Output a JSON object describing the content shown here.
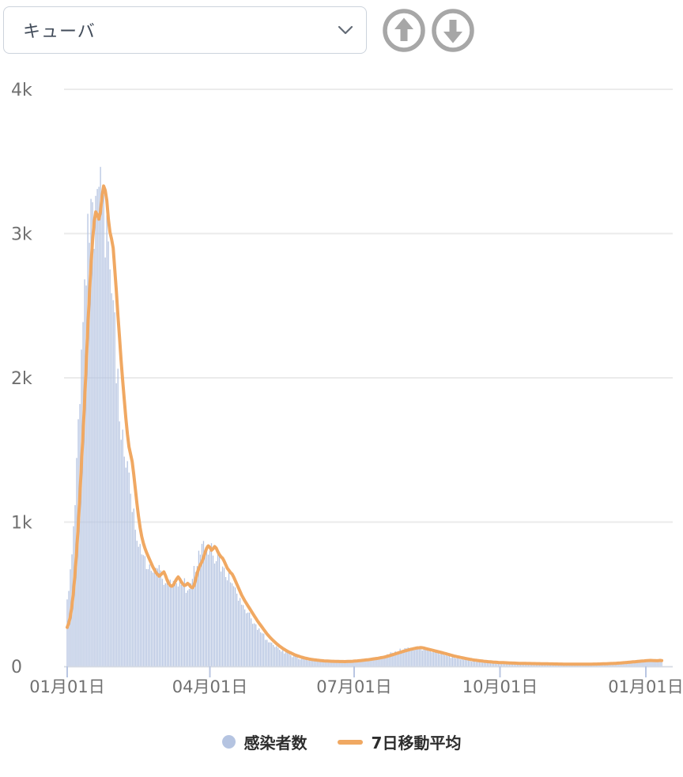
{
  "toolbar": {
    "country_select": {
      "value": "キューバ",
      "chevron_icon": "chevron-down"
    },
    "up_button_icon": "arrow-up-circle",
    "down_button_icon": "arrow-down-circle",
    "button_color": "#a7a7a7"
  },
  "chart_data": {
    "type": "bar+line",
    "title": "",
    "series": [
      {
        "name": "感染者数",
        "type": "bar",
        "color": "#b5c4e1"
      },
      {
        "name": "7日移動平均",
        "type": "line",
        "color": "#f0a862",
        "stroke_width": 4
      }
    ],
    "x_axis": {
      "tick_labels": [
        "01月01日",
        "04月01日",
        "07月01日",
        "10月01日",
        "01月01日"
      ],
      "tick_days": [
        0,
        90,
        181,
        273,
        365
      ],
      "days_total": 375,
      "axis_color": "#d5dae3",
      "tick_color": "#b9c6e2",
      "label_color": "#707070"
    },
    "y_axis": {
      "tick_labels": [
        "0",
        "1k",
        "2k",
        "3k",
        "4k"
      ],
      "tick_values": [
        0,
        1000,
        2000,
        3000,
        4000
      ],
      "max": 4000,
      "grid_color": "#ebebeb",
      "label_color": "#707070"
    },
    "ma7_keypoints": [
      [
        0,
        270
      ],
      [
        1,
        300
      ],
      [
        2,
        345
      ],
      [
        3,
        420
      ],
      [
        4,
        520
      ],
      [
        5,
        650
      ],
      [
        6,
        800
      ],
      [
        7,
        980
      ],
      [
        8,
        1180
      ],
      [
        9,
        1400
      ],
      [
        10,
        1620
      ],
      [
        11,
        1850
      ],
      [
        12,
        2100
      ],
      [
        13,
        2350
      ],
      [
        14,
        2580
      ],
      [
        15,
        2780
      ],
      [
        16,
        2950
      ],
      [
        17,
        3080
      ],
      [
        18,
        3150
      ],
      [
        19,
        3130
      ],
      [
        20,
        3100
      ],
      [
        21,
        3150
      ],
      [
        22,
        3260
      ],
      [
        23,
        3330
      ],
      [
        24,
        3300
      ],
      [
        25,
        3230
      ],
      [
        26,
        3100
      ],
      [
        27,
        3010
      ],
      [
        28,
        2960
      ],
      [
        29,
        2900
      ],
      [
        30,
        2750
      ],
      [
        31,
        2600
      ],
      [
        32,
        2430
      ],
      [
        33,
        2280
      ],
      [
        34,
        2120
      ],
      [
        35,
        1980
      ],
      [
        36,
        1850
      ],
      [
        37,
        1720
      ],
      [
        38,
        1610
      ],
      [
        39,
        1520
      ],
      [
        40,
        1470
      ],
      [
        41,
        1420
      ],
      [
        42,
        1330
      ],
      [
        43,
        1230
      ],
      [
        44,
        1130
      ],
      [
        45,
        1040
      ],
      [
        46,
        960
      ],
      [
        47,
        900
      ],
      [
        48,
        855
      ],
      [
        49,
        820
      ],
      [
        50,
        790
      ],
      [
        52,
        740
      ],
      [
        54,
        690
      ],
      [
        56,
        650
      ],
      [
        58,
        625
      ],
      [
        60,
        645
      ],
      [
        61,
        655
      ],
      [
        62,
        630
      ],
      [
        63,
        600
      ],
      [
        64,
        575
      ],
      [
        65,
        560
      ],
      [
        66,
        555
      ],
      [
        67,
        565
      ],
      [
        68,
        585
      ],
      [
        69,
        605
      ],
      [
        70,
        620
      ],
      [
        71,
        605
      ],
      [
        72,
        585
      ],
      [
        73,
        570
      ],
      [
        74,
        560
      ],
      [
        75,
        565
      ],
      [
        76,
        575
      ],
      [
        77,
        565
      ],
      [
        78,
        550
      ],
      [
        79,
        545
      ],
      [
        80,
        560
      ],
      [
        81,
        600
      ],
      [
        82,
        645
      ],
      [
        83,
        680
      ],
      [
        84,
        705
      ],
      [
        85,
        725
      ],
      [
        86,
        755
      ],
      [
        87,
        790
      ],
      [
        88,
        820
      ],
      [
        89,
        835
      ],
      [
        90,
        825
      ],
      [
        91,
        805
      ],
      [
        92,
        815
      ],
      [
        93,
        830
      ],
      [
        94,
        820
      ],
      [
        95,
        795
      ],
      [
        96,
        775
      ],
      [
        97,
        760
      ],
      [
        98,
        750
      ],
      [
        99,
        730
      ],
      [
        100,
        705
      ],
      [
        101,
        680
      ],
      [
        102,
        665
      ],
      [
        103,
        650
      ],
      [
        104,
        640
      ],
      [
        105,
        620
      ],
      [
        106,
        595
      ],
      [
        107,
        570
      ],
      [
        108,
        545
      ],
      [
        109,
        520
      ],
      [
        110,
        495
      ],
      [
        112,
        455
      ],
      [
        114,
        420
      ],
      [
        116,
        385
      ],
      [
        118,
        350
      ],
      [
        120,
        315
      ],
      [
        122,
        285
      ],
      [
        124,
        255
      ],
      [
        126,
        225
      ],
      [
        128,
        200
      ],
      [
        130,
        178
      ],
      [
        132,
        158
      ],
      [
        134,
        140
      ],
      [
        136,
        124
      ],
      [
        138,
        110
      ],
      [
        140,
        98
      ],
      [
        142,
        88
      ],
      [
        144,
        78
      ],
      [
        146,
        70
      ],
      [
        148,
        63
      ],
      [
        150,
        57
      ],
      [
        153,
        50
      ],
      [
        156,
        45
      ],
      [
        159,
        41
      ],
      [
        162,
        38
      ],
      [
        165,
        36
      ],
      [
        170,
        34
      ],
      [
        175,
        33
      ],
      [
        180,
        35
      ],
      [
        185,
        40
      ],
      [
        190,
        46
      ],
      [
        195,
        54
      ],
      [
        200,
        64
      ],
      [
        204,
        76
      ],
      [
        208,
        90
      ],
      [
        212,
        104
      ],
      [
        216,
        116
      ],
      [
        219,
        124
      ],
      [
        221,
        128
      ],
      [
        223,
        130
      ],
      [
        225,
        127
      ],
      [
        227,
        121
      ],
      [
        230,
        113
      ],
      [
        233,
        104
      ],
      [
        236,
        96
      ],
      [
        240,
        84
      ],
      [
        244,
        72
      ],
      [
        248,
        62
      ],
      [
        252,
        53
      ],
      [
        256,
        45
      ],
      [
        260,
        39
      ],
      [
        264,
        34
      ],
      [
        268,
        30
      ],
      [
        272,
        27
      ],
      [
        276,
        25
      ],
      [
        280,
        23
      ],
      [
        285,
        21
      ],
      [
        290,
        20
      ],
      [
        295,
        19
      ],
      [
        300,
        18
      ],
      [
        305,
        17
      ],
      [
        310,
        16
      ],
      [
        316,
        15
      ],
      [
        322,
        15
      ],
      [
        328,
        15
      ],
      [
        334,
        16
      ],
      [
        340,
        18
      ],
      [
        346,
        21
      ],
      [
        350,
        24
      ],
      [
        354,
        28
      ],
      [
        358,
        32
      ],
      [
        361,
        35
      ],
      [
        364,
        38
      ],
      [
        366,
        40
      ],
      [
        368,
        41
      ],
      [
        370,
        40
      ],
      [
        372,
        39
      ],
      [
        374,
        41
      ],
      [
        375,
        40
      ]
    ],
    "bar_noise": {
      "seed": 20220101,
      "rel_amp": 0.11,
      "abs_amp": 8,
      "bar_lead_days": 3
    }
  },
  "legend": {
    "items": [
      {
        "label": "感染者数",
        "swatch": "dot"
      },
      {
        "label": "7日移動平均",
        "swatch": "line"
      }
    ]
  }
}
